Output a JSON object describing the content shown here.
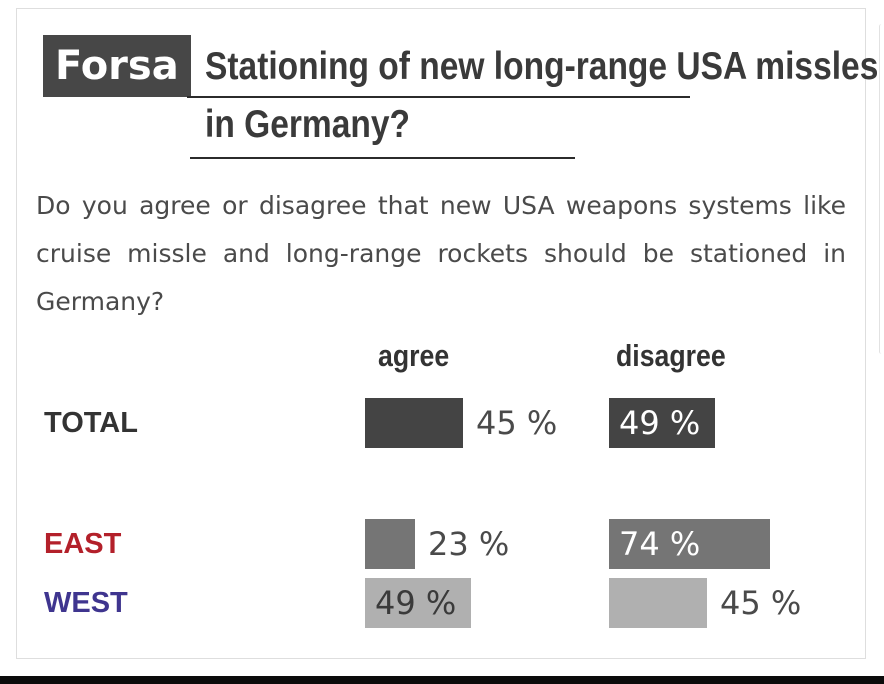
{
  "brand": "Forsa",
  "title_line1": "Stationing of new long-range USA missles",
  "title_line2": "in Germany?",
  "question": "Do you agree or disagree that new USA weapons systems like cruise missle and long-range rockets should be stationed in Germany?",
  "chart_data": {
    "type": "bar",
    "orientation": "horizontal",
    "columns": [
      "agree",
      "disagree"
    ],
    "rows": [
      {
        "label": "TOTAL",
        "label_color": "#333333",
        "bar_color": "#444444",
        "agree": 45,
        "disagree": 49,
        "agree_text": "45 %",
        "disagree_text": "49 %"
      },
      {
        "label": "EAST",
        "label_color": "#b3202a",
        "bar_color": "#757575",
        "agree": 23,
        "disagree": 74,
        "agree_text": "23 %",
        "disagree_text": "74 %"
      },
      {
        "label": "WEST",
        "label_color": "#3f358f",
        "bar_color": "#b0b0b0",
        "agree": 49,
        "disagree": 45,
        "agree_text": "49 %",
        "disagree_text": "45 %"
      }
    ],
    "unit": "%"
  }
}
